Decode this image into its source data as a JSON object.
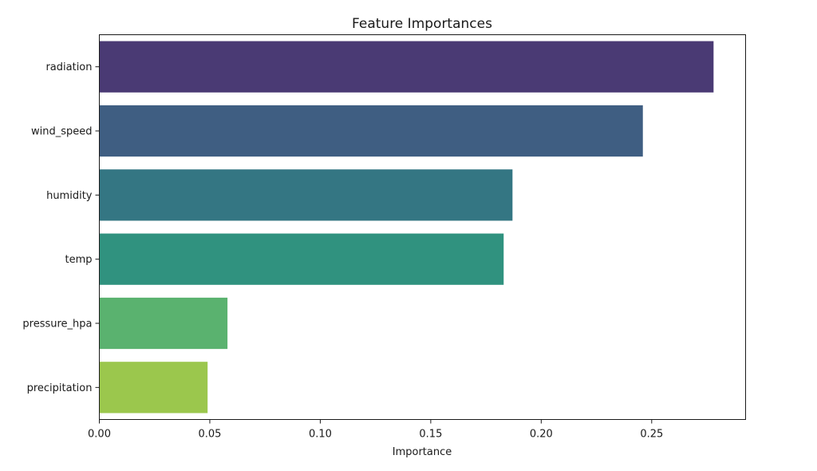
{
  "chart_data": {
    "type": "bar",
    "orientation": "horizontal",
    "title": "Feature Importances",
    "xlabel": "Importance",
    "ylabel": "",
    "xlim": [
      0,
      0.2925
    ],
    "xticks": [
      0.0,
      0.05,
      0.1,
      0.15,
      0.2,
      0.25
    ],
    "xtick_labels": [
      "0.00",
      "0.05",
      "0.10",
      "0.15",
      "0.20",
      "0.25"
    ],
    "categories": [
      "radiation",
      "wind_speed",
      "humidity",
      "temp",
      "pressure_hpa",
      "precipitation"
    ],
    "values": [
      0.278,
      0.246,
      0.187,
      0.183,
      0.058,
      0.049
    ],
    "colors": [
      "#4a3a74",
      "#3f5e82",
      "#347683",
      "#30927f",
      "#5ab26f",
      "#9bc74d"
    ],
    "grid": false,
    "legend": "none"
  }
}
